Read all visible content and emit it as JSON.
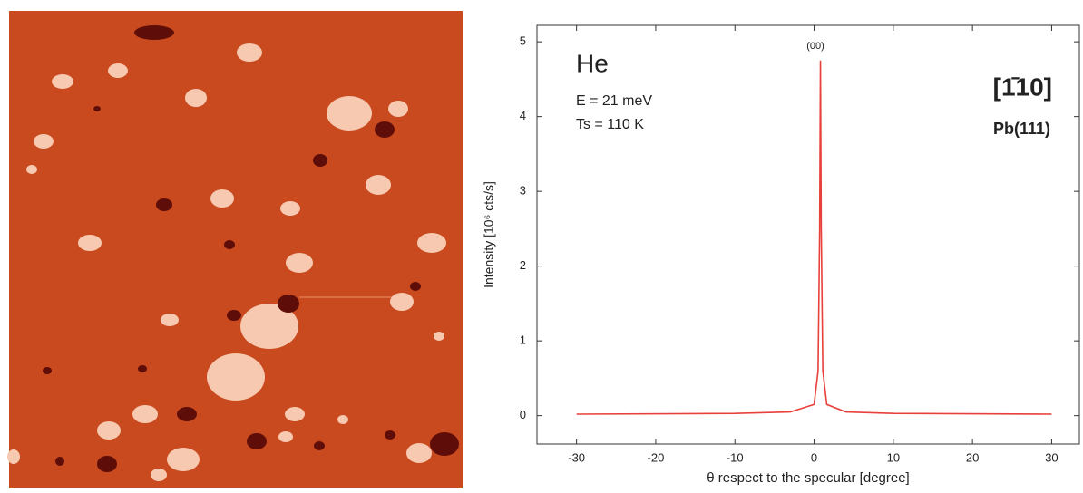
{
  "chart_data": {
    "type": "line",
    "annotations": [
      "He",
      "E = 21 meV",
      "Ts = 110 K",
      "[1̄10]",
      "Pb(111)",
      "(00)"
    ],
    "x_label": "θ respect to the specular [degree]",
    "y_label": "Intensity [10⁶ cts/s]",
    "x": [
      -30,
      -10,
      -3,
      0,
      0.5,
      0.7,
      0.8,
      0.9,
      1.1,
      1.6,
      4,
      10,
      30
    ],
    "series": [
      {
        "color": "#e8403a",
        "values": [
          0.02,
          0.03,
          0.05,
          0.15,
          0.6,
          2.5,
          4.75,
          2.5,
          0.6,
          0.15,
          0.05,
          0.03,
          0.02
        ]
      }
    ],
    "xlim": [
      -35,
      33.5
    ],
    "ylim": [
      -0.38,
      5.22
    ],
    "xticks": [
      -30,
      -20,
      -10,
      0,
      10,
      20,
      30
    ],
    "yticks": [
      0,
      1,
      2,
      3,
      4,
      5
    ]
  }
}
